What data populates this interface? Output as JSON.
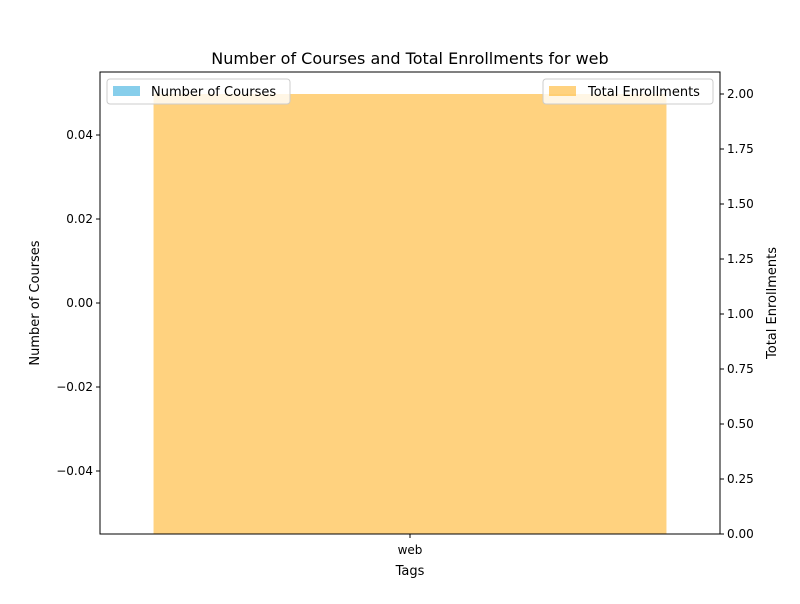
{
  "chart_data": {
    "type": "bar",
    "title": "Number of Courses and Total Enrollments for web",
    "xlabel": "Tags",
    "categories": [
      "web"
    ],
    "y_left": {
      "label": "Number of Courses",
      "ylim": [
        -0.055,
        0.055
      ],
      "ticks": [
        -0.04,
        -0.02,
        0.0,
        0.02,
        0.04
      ],
      "tick_labels": [
        "−0.04",
        "−0.02",
        "0.00",
        "0.02",
        "0.04"
      ]
    },
    "y_right": {
      "label": "Total Enrollments",
      "ylim": [
        0,
        2.1
      ],
      "ticks": [
        0,
        0.25,
        0.5,
        0.75,
        1.0,
        1.25,
        1.5,
        1.75,
        2.0
      ],
      "tick_labels": [
        "0.00",
        "0.25",
        "0.50",
        "0.75",
        "1.00",
        "1.25",
        "1.50",
        "1.75",
        "2.00"
      ]
    },
    "series": [
      {
        "name": "Number of Courses",
        "axis": "left",
        "values": [
          0
        ],
        "color": "#87CEEB"
      },
      {
        "name": "Total Enrollments",
        "axis": "right",
        "values": [
          2
        ],
        "color": "#FFA500",
        "opacity": 0.5
      }
    ],
    "legends": [
      {
        "series": 0,
        "position": "upper-left"
      },
      {
        "series": 1,
        "position": "upper-right"
      }
    ],
    "grid": false
  }
}
